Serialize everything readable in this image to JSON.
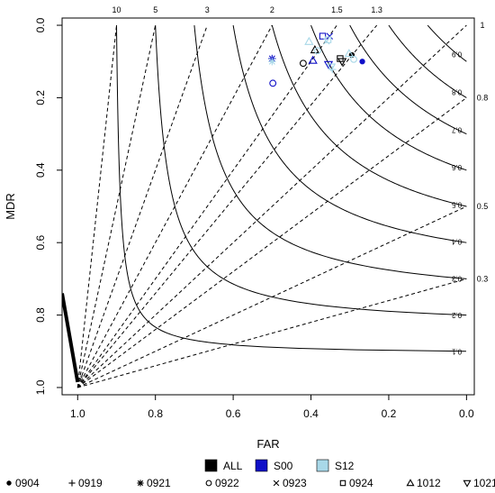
{
  "chart_data": {
    "type": "scatter",
    "title": "",
    "xlabel": "FAR",
    "ylabel": "MDR",
    "xlim": [
      1.04,
      -0.02
    ],
    "ylim": [
      1.02,
      -0.02
    ],
    "x_reversed": true,
    "y_reversed": true,
    "x_ticks": [
      {
        "value": 1.0,
        "label": "1.0"
      },
      {
        "value": 0.8,
        "label": "0.8"
      },
      {
        "value": 0.6,
        "label": "0.6"
      },
      {
        "value": 0.4,
        "label": "0.4"
      },
      {
        "value": 0.2,
        "label": "0.2"
      },
      {
        "value": 0.0,
        "label": "0.0"
      }
    ],
    "y_ticks": [
      {
        "value": 0.0,
        "label": "0.0"
      },
      {
        "value": 0.2,
        "label": "0.2"
      },
      {
        "value": 0.4,
        "label": "0.4"
      },
      {
        "value": 0.6,
        "label": "0.6"
      },
      {
        "value": 0.8,
        "label": "0.8"
      },
      {
        "value": 1.0,
        "label": "1.0"
      }
    ],
    "bias_lines": [
      {
        "bias": 10,
        "label": "10"
      },
      {
        "bias": 5,
        "label": "5"
      },
      {
        "bias": 3,
        "label": "3"
      },
      {
        "bias": 2,
        "label": "2"
      },
      {
        "bias": 1.5,
        "label": "1.5"
      },
      {
        "bias": 1.3,
        "label": "1.3"
      },
      {
        "bias": 1,
        "label": "1"
      },
      {
        "bias": 0.8,
        "label": "0.8"
      },
      {
        "bias": 0.5,
        "label": "0.5"
      },
      {
        "bias": 0.3,
        "label": "0.3"
      }
    ],
    "csi_lines": [
      {
        "csi": 0.1,
        "label": "0.1"
      },
      {
        "csi": 0.2,
        "label": "0.2"
      },
      {
        "csi": 0.3,
        "label": "0.3"
      },
      {
        "csi": 0.4,
        "label": "0.4"
      },
      {
        "csi": 0.5,
        "label": "0.5"
      },
      {
        "csi": 0.6,
        "label": "0.6"
      },
      {
        "csi": 0.7,
        "label": "0.7"
      },
      {
        "csi": 0.8,
        "label": "0.8"
      },
      {
        "csi": 0.9,
        "label": "0.9"
      }
    ],
    "groups": [
      {
        "name": "ALL",
        "color": "#000000"
      },
      {
        "name": "S00",
        "color": "#1010c8"
      },
      {
        "name": "S12",
        "color": "#a8d8e8"
      }
    ],
    "events": [
      {
        "name": "0904",
        "marker": "dot"
      },
      {
        "name": "0919",
        "marker": "plus"
      },
      {
        "name": "0921",
        "marker": "asterisk"
      },
      {
        "name": "0922",
        "marker": "circle"
      },
      {
        "name": "0923",
        "marker": "cross"
      },
      {
        "name": "0924",
        "marker": "square"
      },
      {
        "name": "1012",
        "marker": "triangle"
      },
      {
        "name": "1021",
        "marker": "triangle-down"
      }
    ],
    "points": [
      {
        "group": "ALL",
        "event": "0904",
        "far": 0.295,
        "mdr": 0.082
      },
      {
        "group": "ALL",
        "event": "1012",
        "far": 0.39,
        "mdr": 0.068
      },
      {
        "group": "ALL",
        "event": "0922",
        "far": 0.42,
        "mdr": 0.105
      },
      {
        "group": "ALL",
        "event": "1021",
        "far": 0.32,
        "mdr": 0.1
      },
      {
        "group": "ALL",
        "event": "0924",
        "far": 0.325,
        "mdr": 0.092
      },
      {
        "group": "S00",
        "event": "0921",
        "far": 0.5,
        "mdr": 0.092
      },
      {
        "group": "S00",
        "event": "0922",
        "far": 0.498,
        "mdr": 0.16
      },
      {
        "group": "S00",
        "event": "1012",
        "far": 0.395,
        "mdr": 0.097
      },
      {
        "group": "S00",
        "event": "0924",
        "far": 0.37,
        "mdr": 0.03
      },
      {
        "group": "S00",
        "event": "0923",
        "far": 0.352,
        "mdr": 0.03
      },
      {
        "group": "S00",
        "event": "1021",
        "far": 0.355,
        "mdr": 0.108
      },
      {
        "group": "S00",
        "event": "0904",
        "far": 0.268,
        "mdr": 0.1
      },
      {
        "group": "S12",
        "event": "0921",
        "far": 0.5,
        "mdr": 0.1
      },
      {
        "group": "S12",
        "event": "1012",
        "far": 0.405,
        "mdr": 0.045
      },
      {
        "group": "S12",
        "event": "0922",
        "far": 0.383,
        "mdr": 0.07
      },
      {
        "group": "S12",
        "event": "0924",
        "far": 0.356,
        "mdr": 0.04
      },
      {
        "group": "S12",
        "event": "1021",
        "far": 0.348,
        "mdr": 0.115
      },
      {
        "group": "S12",
        "event": "0919",
        "far": 0.345,
        "mdr": 0.122
      },
      {
        "group": "S12",
        "event": "1012",
        "far": 0.302,
        "mdr": 0.078
      },
      {
        "group": "S12",
        "event": "0922",
        "far": 0.29,
        "mdr": 0.094
      },
      {
        "group": "S12",
        "event": "0923",
        "far": 0.36,
        "mdr": 0.044
      }
    ],
    "grid": false,
    "legend_placement": "bottom"
  }
}
